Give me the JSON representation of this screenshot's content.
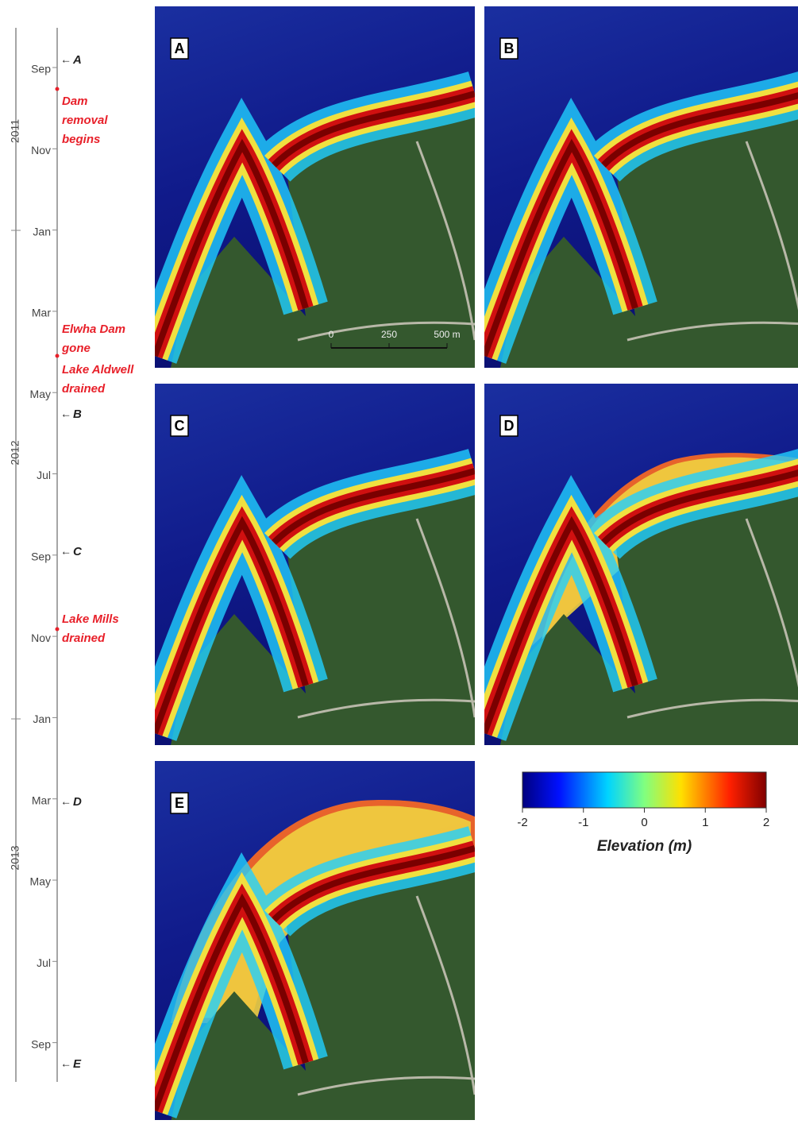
{
  "timeline": {
    "years": [
      "2011",
      "2012",
      "2013"
    ],
    "months": [
      "Sep",
      "Nov",
      "Jan",
      "Mar",
      "May",
      "Jul",
      "Sep",
      "Nov",
      "Jan",
      "Mar",
      "May",
      "Jul",
      "Sep"
    ],
    "markers": [
      "A",
      "B",
      "C",
      "D",
      "E"
    ],
    "events": [
      {
        "lines": [
          "Dam",
          "removal",
          "begins"
        ]
      },
      {
        "lines": [
          "Elwha Dam",
          "gone"
        ]
      },
      {
        "lines": [
          "Lake Aldwell",
          "drained"
        ]
      },
      {
        "lines": [
          "Lake Mills",
          "drained"
        ]
      }
    ]
  },
  "panels": [
    {
      "label": "A",
      "scale_bar": [
        "0",
        "250",
        "500 m"
      ]
    },
    {
      "label": "B"
    },
    {
      "label": "C"
    },
    {
      "label": "D"
    },
    {
      "label": "E"
    }
  ],
  "colorbar": {
    "lim": [
      -2,
      2
    ],
    "ticks": [
      -2,
      -1,
      0,
      1,
      2
    ],
    "label": "Elevation (m)"
  }
}
